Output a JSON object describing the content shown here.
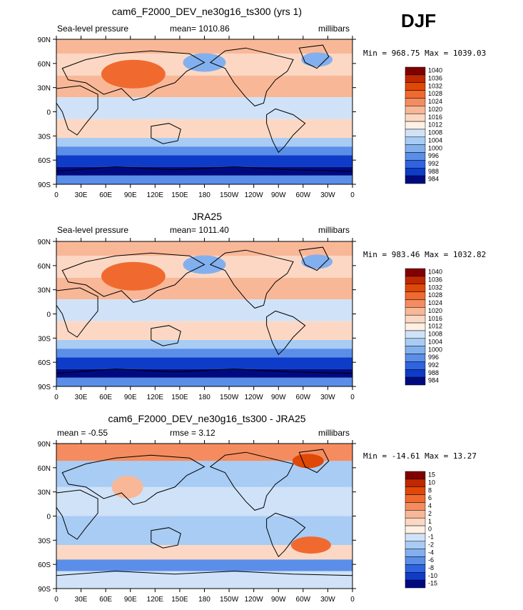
{
  "season": "DJF",
  "panels": [
    {
      "title": "cam6_F2000_DEV_ne30g16_ts300 (yrs 1)",
      "left_label": "Sea-level pressure",
      "center_label": "mean= 1010.86",
      "right_label": "millibars",
      "minmax": "Min = 968.75 Max = 1039.03",
      "colorbar_labels": [
        "1040",
        "1036",
        "1032",
        "1028",
        "1024",
        "1020",
        "1016",
        "1012",
        "1008",
        "1004",
        "1000",
        "996",
        "992",
        "988",
        "984"
      ]
    },
    {
      "title": "JRA25",
      "left_label": "Sea-level pressure",
      "center_label": "mean= 1011.40",
      "right_label": "millibars",
      "minmax": "Min = 983.46 Max = 1032.82",
      "colorbar_labels": [
        "1040",
        "1036",
        "1032",
        "1028",
        "1024",
        "1020",
        "1016",
        "1012",
        "1008",
        "1004",
        "1000",
        "996",
        "992",
        "988",
        "984"
      ]
    },
    {
      "title": "cam6_F2000_DEV_ne30g16_ts300 - JRA25",
      "left_label": "mean =   -0.55",
      "center_label": "rmse =   3.12",
      "right_label": "millibars",
      "minmax": "Min = -14.61 Max =  13.27",
      "colorbar_labels": [
        "15",
        "10",
        "8",
        "6",
        "4",
        "2",
        "1",
        "0",
        "-1",
        "-2",
        "-4",
        "-6",
        "-8",
        "-10",
        "-15"
      ]
    }
  ],
  "lat_labels": [
    "90N",
    "60N",
    "30N",
    "0",
    "30S",
    "60S",
    "90S"
  ],
  "lon_labels": [
    "0",
    "30E",
    "60E",
    "90E",
    "120E",
    "150E",
    "180",
    "150W",
    "120W",
    "90W",
    "60W",
    "30W",
    "0"
  ],
  "colors": {
    "abs_scale": [
      "#800000",
      "#c02800",
      "#e04808",
      "#f06a30",
      "#f48c60",
      "#f8b898",
      "#fcd8c4",
      "#fff0e4",
      "#cfe2f8",
      "#a8ccf4",
      "#82b0ee",
      "#5a8ee8",
      "#2f64e0",
      "#0e3cc8",
      "#000a80"
    ],
    "diff_scale": [
      "#800000",
      "#c02800",
      "#e04808",
      "#f06a30",
      "#f48c60",
      "#f8b898",
      "#fcd8c4",
      "#fff0e4",
      "#cfe2f8",
      "#a8ccf4",
      "#82b0ee",
      "#5a8ee8",
      "#2f64e0",
      "#0e3cc8",
      "#000a80"
    ],
    "land_outline": "#000000"
  }
}
